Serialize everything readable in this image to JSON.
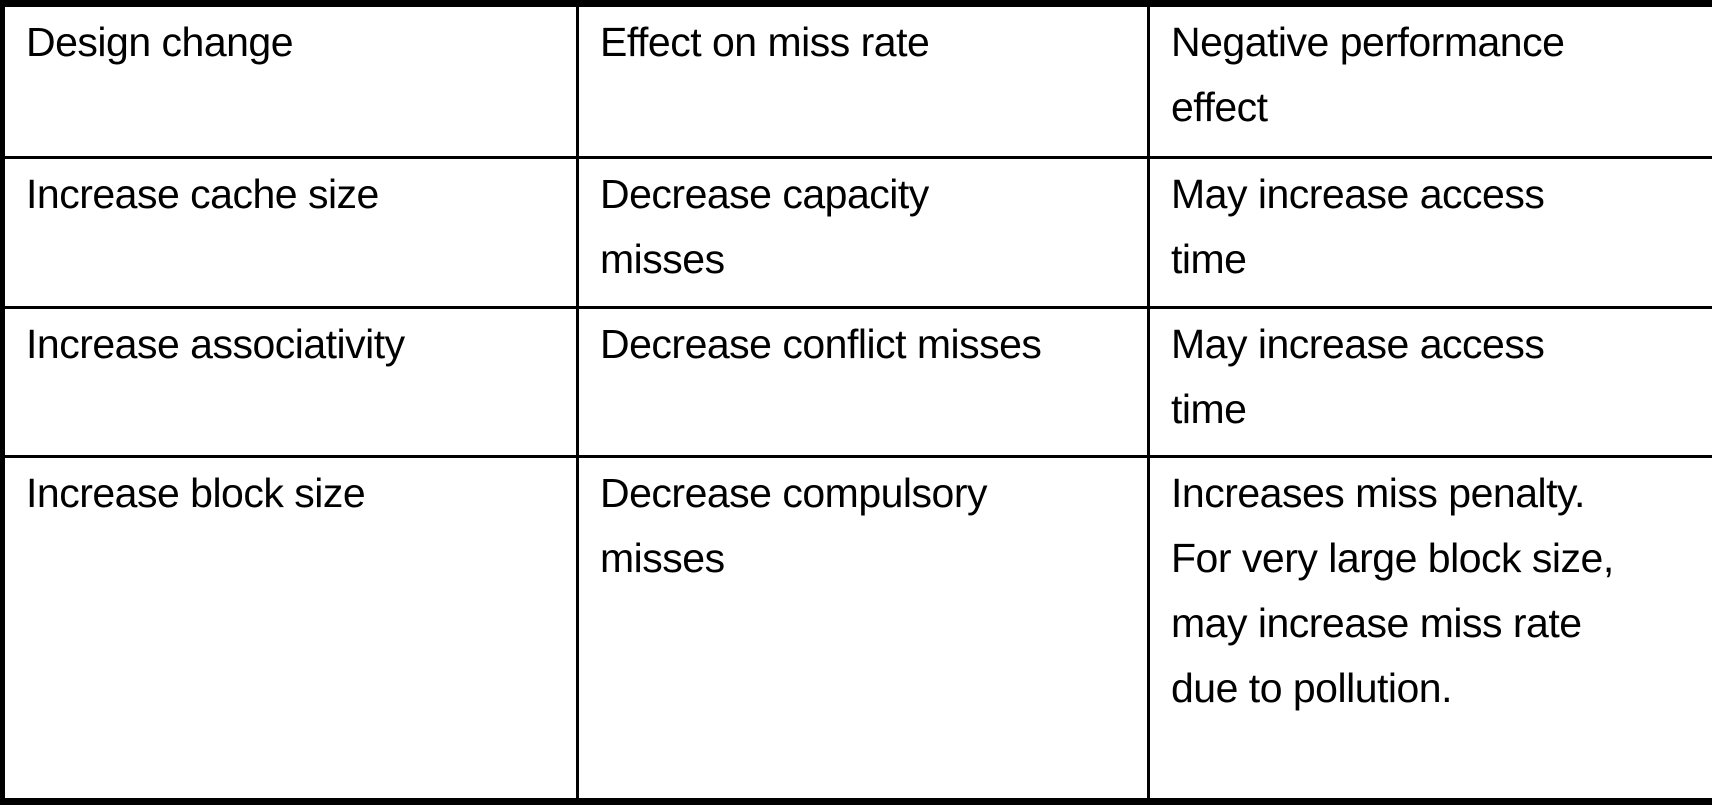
{
  "table": {
    "title_semantic": "Cache design changes and their effects",
    "header": {
      "cells": [
        "Design change",
        "Effect on miss rate",
        "Negative performance\neffect"
      ]
    },
    "rows": [
      {
        "cells": [
          "Increase cache size",
          "Decrease capacity\nmisses",
          "May increase access\ntime"
        ]
      },
      {
        "cells": [
          "Increase associativity",
          "Decrease conflict misses",
          "May increase access\ntime"
        ]
      },
      {
        "cells": [
          "Increase block size",
          "Decrease compulsory\nmisses",
          "Increases miss penalty.\nFor very large block size,\nmay increase miss rate\ndue to pollution."
        ]
      }
    ]
  },
  "colors": {
    "border": "#000000",
    "text": "#000000",
    "background": "#ffffff"
  }
}
